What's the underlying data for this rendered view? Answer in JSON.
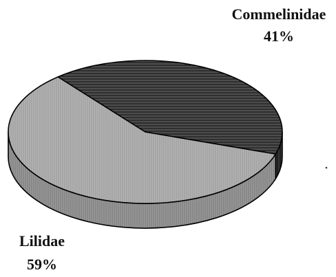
{
  "chart_data": {
    "type": "pie",
    "style": "3d",
    "categories": [
      "Commelinidae",
      "Lilidae"
    ],
    "values": [
      41,
      59
    ],
    "data_labels": [
      {
        "name": "Commelinidae",
        "percent": "41%"
      },
      {
        "name": "Lilidae",
        "percent": "59%"
      }
    ],
    "colors": {
      "commelinidae": "#2b2b2b",
      "lilidae": "#a9a9a9",
      "outline": "#000000"
    },
    "legend": "none"
  }
}
